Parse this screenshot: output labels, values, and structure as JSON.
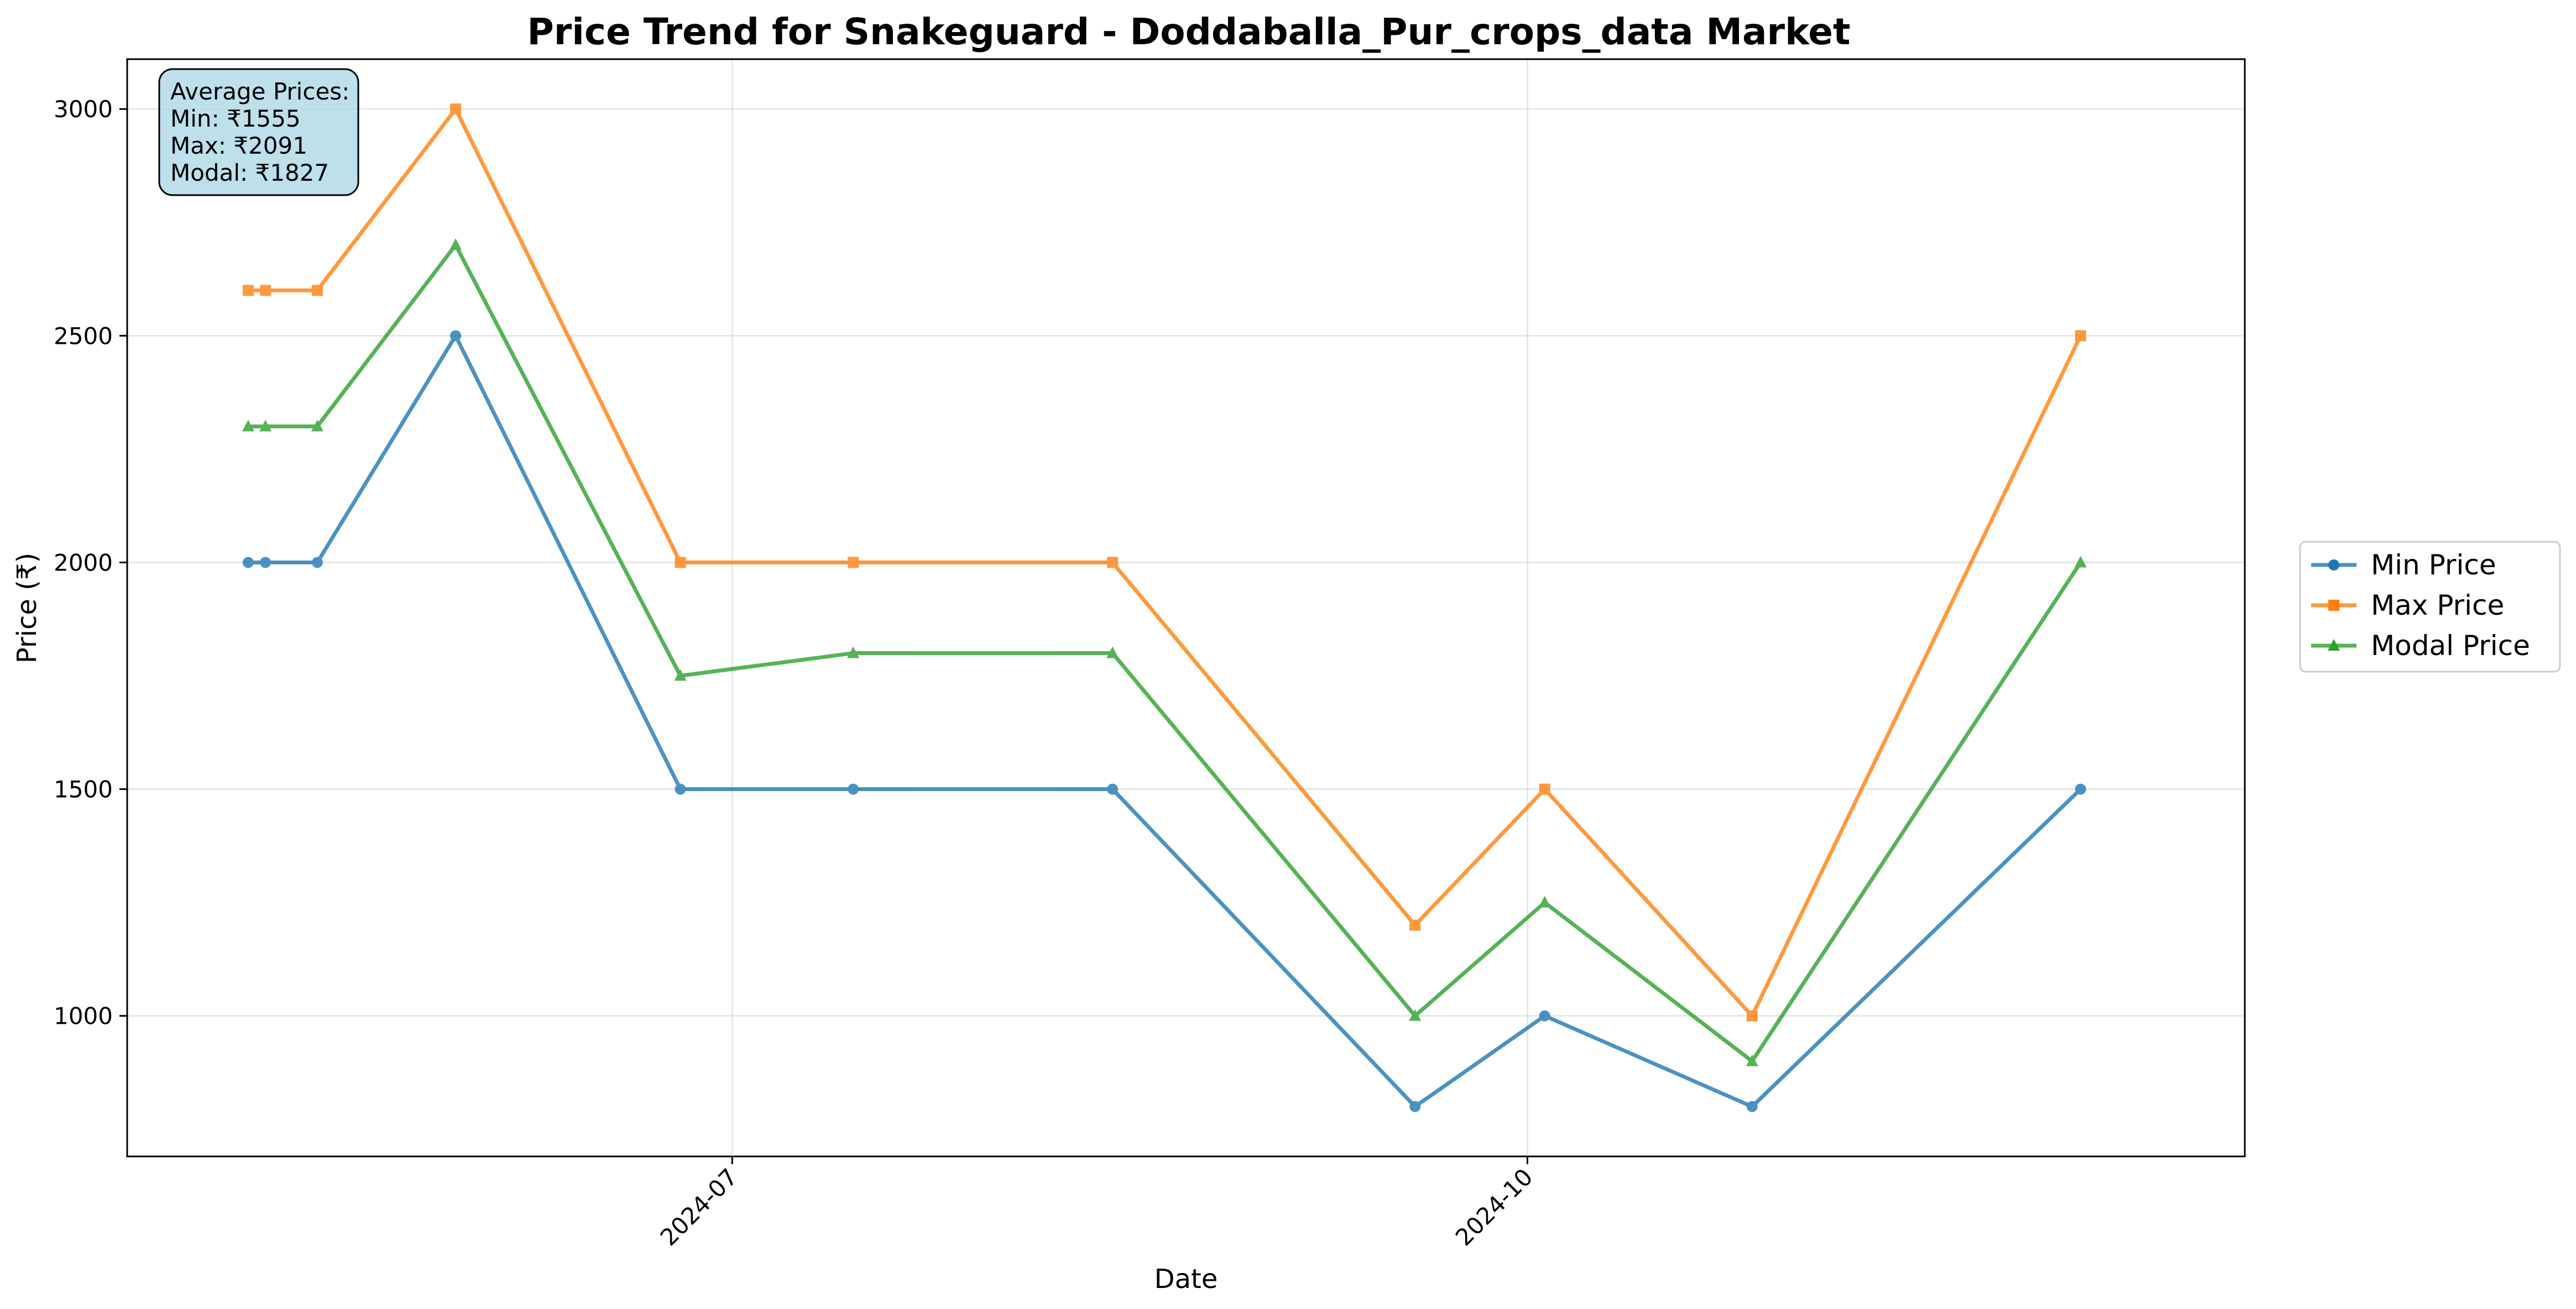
{
  "chart_data": {
    "type": "line",
    "title": "Price Trend for Snakeguard - Doddaballa_Pur_crops_data Market",
    "xlabel": "Date",
    "ylabel": "Price (₹)",
    "x": [
      "2024-05-06",
      "2024-05-08",
      "2024-05-14",
      "2024-05-30",
      "2024-06-25",
      "2024-07-15",
      "2024-08-14",
      "2024-09-18",
      "2024-10-03",
      "2024-10-27",
      "2024-12-04"
    ],
    "series": [
      {
        "name": "Min Price",
        "color": "#1f77b4",
        "marker": "circle",
        "values": [
          2000,
          2000,
          2000,
          2500,
          1500,
          1500,
          1500,
          800,
          1000,
          800,
          1500
        ]
      },
      {
        "name": "Max Price",
        "color": "#ff7f0e",
        "marker": "square",
        "values": [
          2600,
          2600,
          2600,
          3000,
          2000,
          2000,
          2000,
          1200,
          1500,
          1000,
          2500
        ]
      },
      {
        "name": "Modal Price",
        "color": "#2ca02c",
        "marker": "triangle",
        "values": [
          2300,
          2300,
          2300,
          2700,
          1750,
          1800,
          1800,
          1000,
          1250,
          900,
          2000
        ]
      }
    ],
    "xlim": [
      "2024-04-22",
      "2024-12-23"
    ],
    "ylim": [
      690,
      3110
    ],
    "x_ticks": [
      {
        "date": "2024-07-01",
        "label": "2024-07"
      },
      {
        "date": "2024-10-01",
        "label": "2024-10"
      }
    ],
    "y_ticks": [
      1000,
      1500,
      2000,
      2500,
      3000
    ],
    "grid": true,
    "legend_position": "center-right-outside",
    "annotation": {
      "lines": [
        "Average Prices:",
        "Min: ₹1555",
        "Max: ₹2091",
        "Modal: ₹1827"
      ],
      "background": "#add8e6"
    }
  }
}
